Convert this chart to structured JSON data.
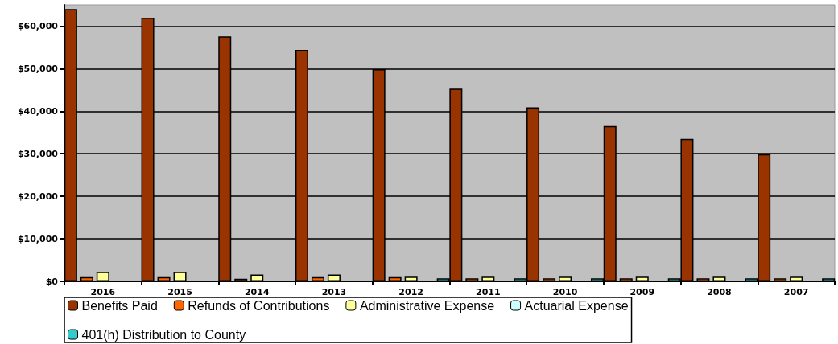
{
  "chart_data": {
    "type": "bar",
    "categories": [
      "2016",
      "2015",
      "2014",
      "2013",
      "2012",
      "2011",
      "2010",
      "2009",
      "2008",
      "2007"
    ],
    "series": [
      {
        "name": "Benefits Paid",
        "color": "#993300",
        "values": [
          64000,
          62000,
          57600,
          54400,
          49900,
          45300,
          40900,
          36500,
          33500,
          29900
        ]
      },
      {
        "name": "Refunds of Contributions",
        "color": "#ff6600",
        "values": [
          1000,
          1000,
          600,
          1000,
          1000,
          700,
          700,
          700,
          700,
          700
        ]
      },
      {
        "name": "Administrative Expense",
        "color": "#ffff99",
        "values": [
          2200,
          2200,
          1600,
          1600,
          1100,
          1100,
          1100,
          1100,
          1100,
          1100
        ]
      },
      {
        "name": "Actuarial Expense",
        "color": "#ccffff",
        "values": [
          null,
          null,
          null,
          null,
          null,
          null,
          null,
          null,
          null,
          null
        ]
      },
      {
        "name": "401(h) Distribution to County",
        "color": "#33cccc",
        "values": [
          null,
          null,
          null,
          null,
          700,
          700,
          700,
          700,
          700,
          700
        ]
      }
    ],
    "ylim": [
      0,
      65000
    ],
    "yticks": [
      {
        "value": 0,
        "label": "$0"
      },
      {
        "value": 10000,
        "label": "$10,000"
      },
      {
        "value": 20000,
        "label": "$20,000"
      },
      {
        "value": 30000,
        "label": "$30,000"
      },
      {
        "value": 40000,
        "label": "$40,000"
      },
      {
        "value": 50000,
        "label": "$50,000"
      },
      {
        "value": 60000,
        "label": "$60,000"
      }
    ],
    "grid": "y",
    "legend": "bottom"
  }
}
